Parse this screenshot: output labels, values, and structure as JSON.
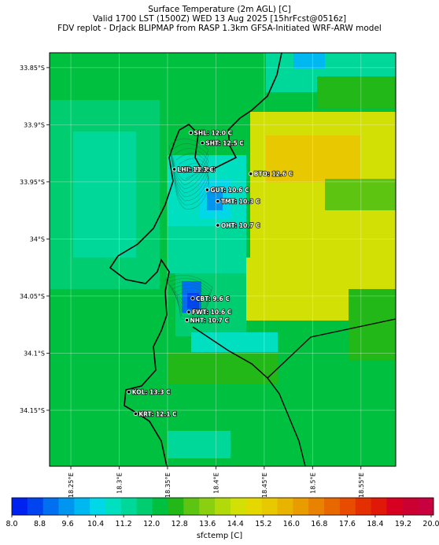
{
  "header": {
    "line1": "Surface Temperature (2m AGL) [C]",
    "line2": "Valid 1700 LST (1500Z) WED 13 Aug 2025 [15hrFcst@0516z]",
    "line3": "FDV replot - DrJack BLIPMAP from RASP 1.3km GFSA-Initiated WRF-ARW model"
  },
  "axes": {
    "lat_ticks": [
      "33.85°S",
      "33.9°S",
      "33.95°S",
      "34°S",
      "34.05°S",
      "34.1°S",
      "34.15°S"
    ],
    "lon_ticks": [
      "18.25°E",
      "18.3°E",
      "18.35°E",
      "18.4°E",
      "18.45°E",
      "18.5°E",
      "18.55°E"
    ],
    "lat_range": [
      -34.199,
      -33.837
    ],
    "lon_range": [
      18.228,
      18.586
    ]
  },
  "stations": [
    {
      "label": "SHL: 12.0 C",
      "lon": 18.374,
      "lat": -33.907
    },
    {
      "label": "SHT: 12.5 C",
      "lon": 18.386,
      "lat": -33.916
    },
    {
      "label": "LHT: 11.2 C",
      "lon": 18.357,
      "lat": -33.939
    },
    {
      "label": "LHI: 11.3 C",
      "lon": 18.357,
      "lat": -33.939
    },
    {
      "label": "BTO: 12.6 C",
      "lon": 18.436,
      "lat": -33.943
    },
    {
      "label": "GUT: 10.6 C",
      "lon": 18.391,
      "lat": -33.957
    },
    {
      "label": "TMT: 10.3 C",
      "lon": 18.402,
      "lat": -33.967
    },
    {
      "label": "OHT: 10.7 C",
      "lon": 18.402,
      "lat": -33.988
    },
    {
      "label": "CBT: 9.6 C",
      "lon": 18.376,
      "lat": -34.052
    },
    {
      "label": "FWT: 10.6 C",
      "lon": 18.372,
      "lat": -34.064
    },
    {
      "label": "NHT: 10.7 C",
      "lon": 18.37,
      "lat": -34.071
    },
    {
      "label": "KOL: 13.3 C",
      "lon": 18.31,
      "lat": -34.134
    },
    {
      "label": "KRT: 12.1 C",
      "lon": 18.317,
      "lat": -34.153
    }
  ],
  "colorbar": {
    "title": "sfctemp [C]",
    "ticks": [
      "8.0",
      "8.8",
      "9.6",
      "10.4",
      "11.2",
      "12.0",
      "12.8",
      "13.6",
      "14.4",
      "15.2",
      "16.0",
      "16.8",
      "17.6",
      "18.4",
      "19.2",
      "20.0"
    ],
    "colors": [
      "#0022f0",
      "#0044f0",
      "#0070f0",
      "#0096f0",
      "#00b8f0",
      "#00d8e8",
      "#00e0c0",
      "#00d89a",
      "#00cc70",
      "#00c040",
      "#22b818",
      "#5ec412",
      "#8ad010",
      "#b2da0a",
      "#d2e006",
      "#e4d800",
      "#e8c800",
      "#e8b400",
      "#e89c00",
      "#e88200",
      "#e86800",
      "#e84c00",
      "#e43000",
      "#e01808",
      "#d80020",
      "#cc0030",
      "#c80040"
    ]
  },
  "field": {
    "description_colors": {
      "sea": "#00c040",
      "cool": "#00d8e8",
      "warm": "#d2e006",
      "hot": "#e8c800"
    }
  }
}
